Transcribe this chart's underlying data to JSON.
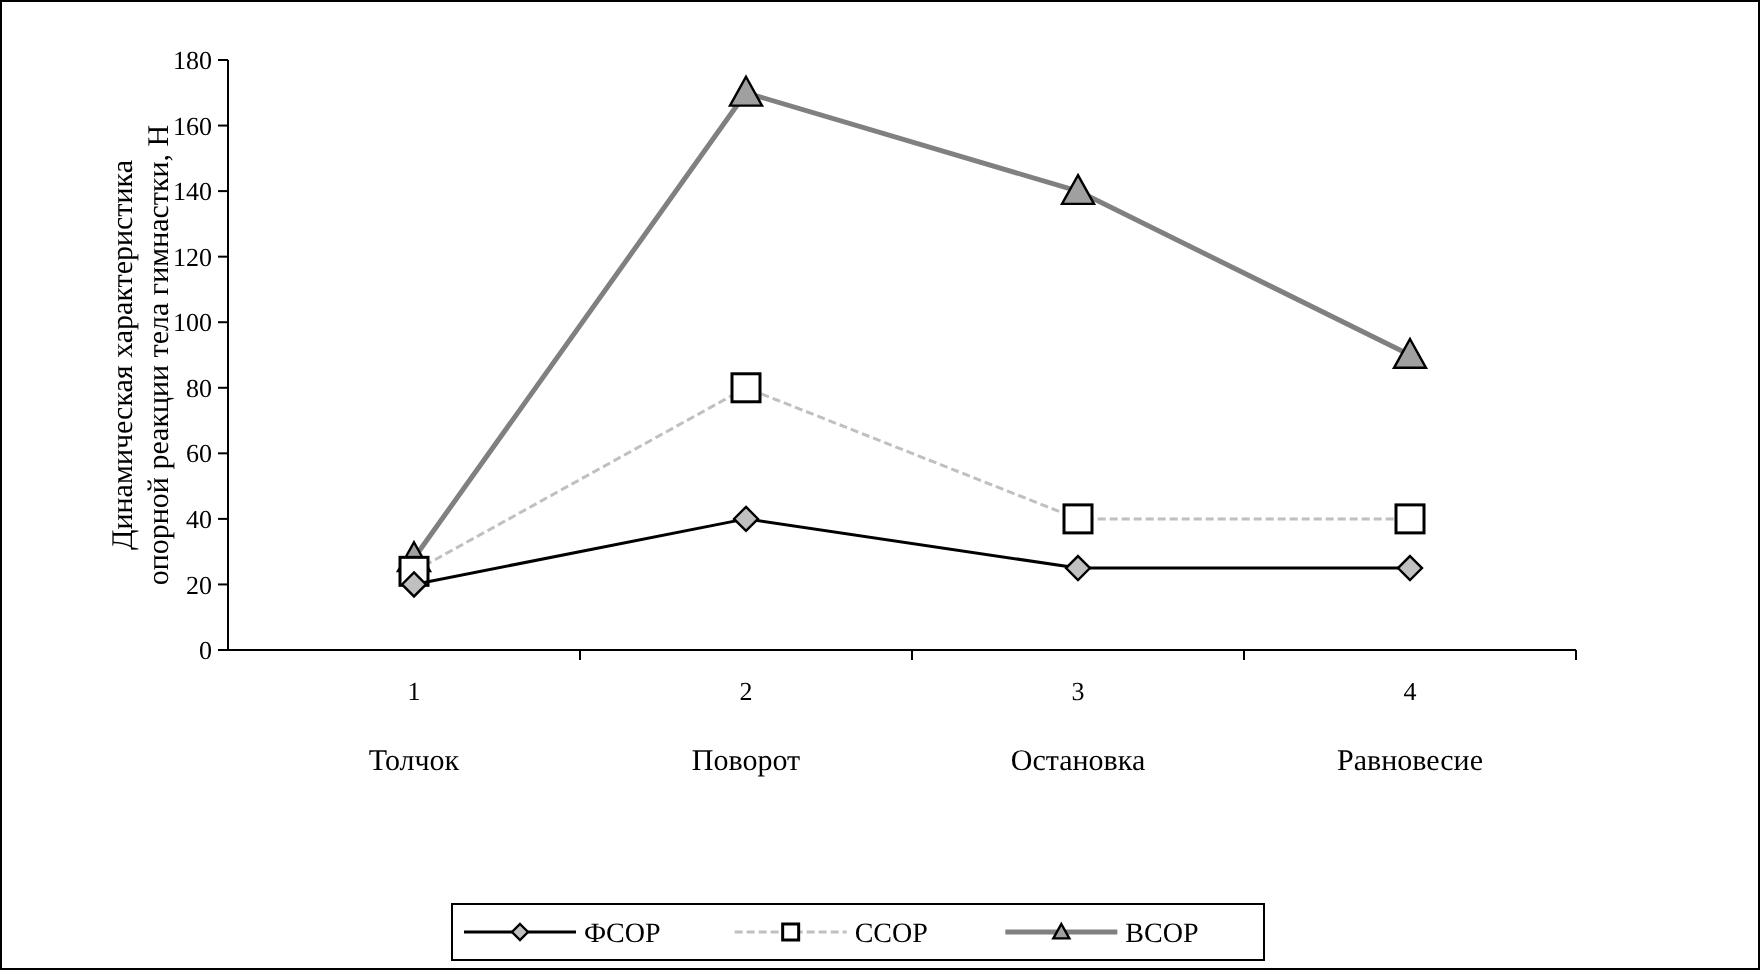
{
  "chart_data": {
    "type": "line",
    "ylabel": "Динамическая характеристика\nопорной реакции тела гимнастки, Н",
    "categories": [
      "1\nТолчок",
      "2\nПоворот",
      "3\nОстановка",
      "4\nРавновесие"
    ],
    "ylim": [
      0,
      180
    ],
    "yticks": [
      0,
      20,
      40,
      60,
      80,
      100,
      120,
      140,
      160,
      180
    ],
    "grid": false,
    "legend": "bottom",
    "series": [
      {
        "name": "ФСОР",
        "color": "#000000",
        "values": [
          20,
          40,
          25,
          25
        ],
        "marker": "diamond",
        "line_style": "solid"
      },
      {
        "name": "ССОР",
        "color": "#c0c0c0",
        "values": [
          24,
          80,
          40,
          40
        ],
        "marker": "square",
        "line_style": "dashed"
      },
      {
        "name": "ВСОР",
        "color": "#808080",
        "values": [
          28,
          170,
          140,
          90
        ],
        "marker": "triangle",
        "line_style": "solid"
      }
    ]
  }
}
